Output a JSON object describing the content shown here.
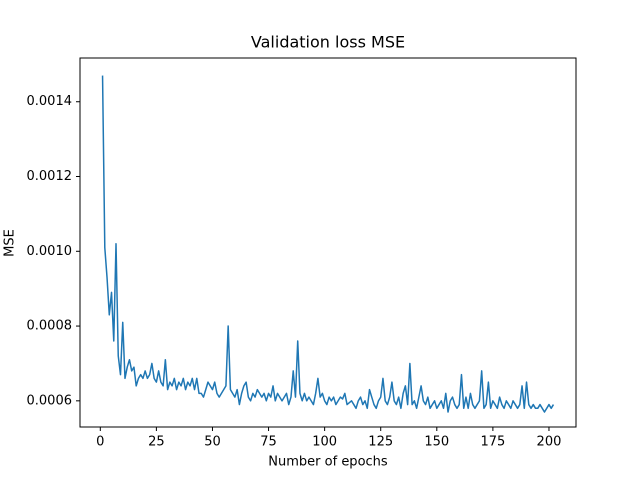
{
  "chart_data": {
    "type": "line",
    "title": "Validation loss MSE",
    "x_label": "Number of epochs",
    "y_label": "MSE",
    "x": [
      1,
      2,
      3,
      4,
      5,
      6,
      7,
      8,
      9,
      10,
      11,
      12,
      13,
      14,
      15,
      16,
      17,
      18,
      19,
      20,
      21,
      22,
      23,
      24,
      25,
      26,
      27,
      28,
      29,
      30,
      31,
      32,
      33,
      34,
      35,
      36,
      37,
      38,
      39,
      40,
      41,
      42,
      43,
      44,
      45,
      46,
      47,
      48,
      49,
      50,
      51,
      52,
      53,
      54,
      55,
      56,
      57,
      58,
      59,
      60,
      61,
      62,
      63,
      64,
      65,
      66,
      67,
      68,
      69,
      70,
      71,
      72,
      73,
      74,
      75,
      76,
      77,
      78,
      79,
      80,
      81,
      82,
      83,
      84,
      85,
      86,
      87,
      88,
      89,
      90,
      91,
      92,
      93,
      94,
      95,
      96,
      97,
      98,
      99,
      100,
      101,
      102,
      103,
      104,
      105,
      106,
      107,
      108,
      109,
      110,
      111,
      112,
      113,
      114,
      115,
      116,
      117,
      118,
      119,
      120,
      121,
      122,
      123,
      124,
      125,
      126,
      127,
      128,
      129,
      130,
      131,
      132,
      133,
      134,
      135,
      136,
      137,
      138,
      139,
      140,
      141,
      142,
      143,
      144,
      145,
      146,
      147,
      148,
      149,
      150,
      151,
      152,
      153,
      154,
      155,
      156,
      157,
      158,
      159,
      160,
      161,
      162,
      163,
      164,
      165,
      166,
      167,
      168,
      169,
      170,
      171,
      172,
      173,
      174,
      175,
      176,
      177,
      178,
      179,
      180,
      181,
      182,
      183,
      184,
      185,
      186,
      187,
      188,
      189,
      190,
      191,
      192,
      193,
      194,
      195,
      196,
      197,
      198,
      199,
      200,
      201,
      202
    ],
    "series": [
      {
        "color": "#1f77b4",
        "values": [
          0.00147,
          0.00101,
          0.00093,
          0.00083,
          0.00089,
          0.00076,
          0.00102,
          0.00072,
          0.00067,
          0.00081,
          0.00066,
          0.00069,
          0.00071,
          0.00068,
          0.00069,
          0.00064,
          0.00066,
          0.00067,
          0.00066,
          0.00068,
          0.00066,
          0.00067,
          0.0007,
          0.00066,
          0.00065,
          0.00068,
          0.00065,
          0.00064,
          0.00071,
          0.00063,
          0.00065,
          0.00064,
          0.00066,
          0.00063,
          0.00065,
          0.00064,
          0.00066,
          0.00063,
          0.00065,
          0.00064,
          0.00066,
          0.00063,
          0.00066,
          0.00062,
          0.00062,
          0.00061,
          0.00063,
          0.00065,
          0.00064,
          0.00063,
          0.00065,
          0.00062,
          0.00061,
          0.00062,
          0.00063,
          0.00064,
          0.0008,
          0.00063,
          0.00062,
          0.00061,
          0.00063,
          0.00059,
          0.00062,
          0.00064,
          0.00065,
          0.00061,
          0.0006,
          0.00062,
          0.00061,
          0.00063,
          0.00062,
          0.00061,
          0.00062,
          0.0006,
          0.00062,
          0.00061,
          0.00064,
          0.0006,
          0.00062,
          0.00061,
          0.0006,
          0.00061,
          0.00062,
          0.00059,
          0.00061,
          0.00068,
          0.00061,
          0.00076,
          0.00062,
          0.0006,
          0.00062,
          0.0006,
          0.00061,
          0.0006,
          0.00059,
          0.00062,
          0.00066,
          0.00061,
          0.00062,
          0.0006,
          0.00059,
          0.00061,
          0.0006,
          0.00061,
          0.00059,
          0.0006,
          0.00061,
          0.000605,
          0.00062,
          0.00059,
          0.000595,
          0.0006,
          0.00059,
          0.00058,
          0.0006,
          0.00061,
          0.00059,
          0.0006,
          0.00058,
          0.00063,
          0.00061,
          0.00059,
          0.00058,
          0.0006,
          0.00061,
          0.00066,
          0.0006,
          0.00059,
          0.00061,
          0.00065,
          0.0006,
          0.00059,
          0.00061,
          0.00058,
          0.00062,
          0.00064,
          0.00059,
          0.0007,
          0.00059,
          0.0006,
          0.00058,
          0.00061,
          0.00064,
          0.0006,
          0.00059,
          0.00061,
          0.00058,
          0.00059,
          0.0006,
          0.00058,
          0.00059,
          0.0006,
          0.00058,
          0.00062,
          0.00057,
          0.0006,
          0.00061,
          0.00059,
          0.00058,
          0.00059,
          0.00067,
          0.00058,
          0.00061,
          0.00058,
          0.00062,
          0.00059,
          0.00058,
          0.00059,
          0.0006,
          0.00068,
          0.00058,
          0.00059,
          0.00065,
          0.00058,
          0.0006,
          0.00059,
          0.00058,
          0.00061,
          0.00059,
          0.00058,
          0.0006,
          0.00059,
          0.00058,
          0.0006,
          0.00059,
          0.00058,
          0.00059,
          0.00064,
          0.00058,
          0.00065,
          0.00059,
          0.00058,
          0.00059,
          0.00058,
          0.00058,
          0.00059,
          0.00058,
          0.00057,
          0.00058,
          0.00059,
          0.00058,
          0.00059
        ]
      }
    ],
    "xlim": [
      -9.05,
      212.05
    ],
    "xticks": [
      0,
      25,
      50,
      75,
      100,
      125,
      150,
      175,
      200
    ],
    "ylim": [
      0.00053,
      0.001517
    ],
    "yticks": [
      0.0006,
      0.0008,
      {
        "value": 0.001,
        "label": "0.0010"
      },
      0.0012,
      0.0014
    ]
  }
}
